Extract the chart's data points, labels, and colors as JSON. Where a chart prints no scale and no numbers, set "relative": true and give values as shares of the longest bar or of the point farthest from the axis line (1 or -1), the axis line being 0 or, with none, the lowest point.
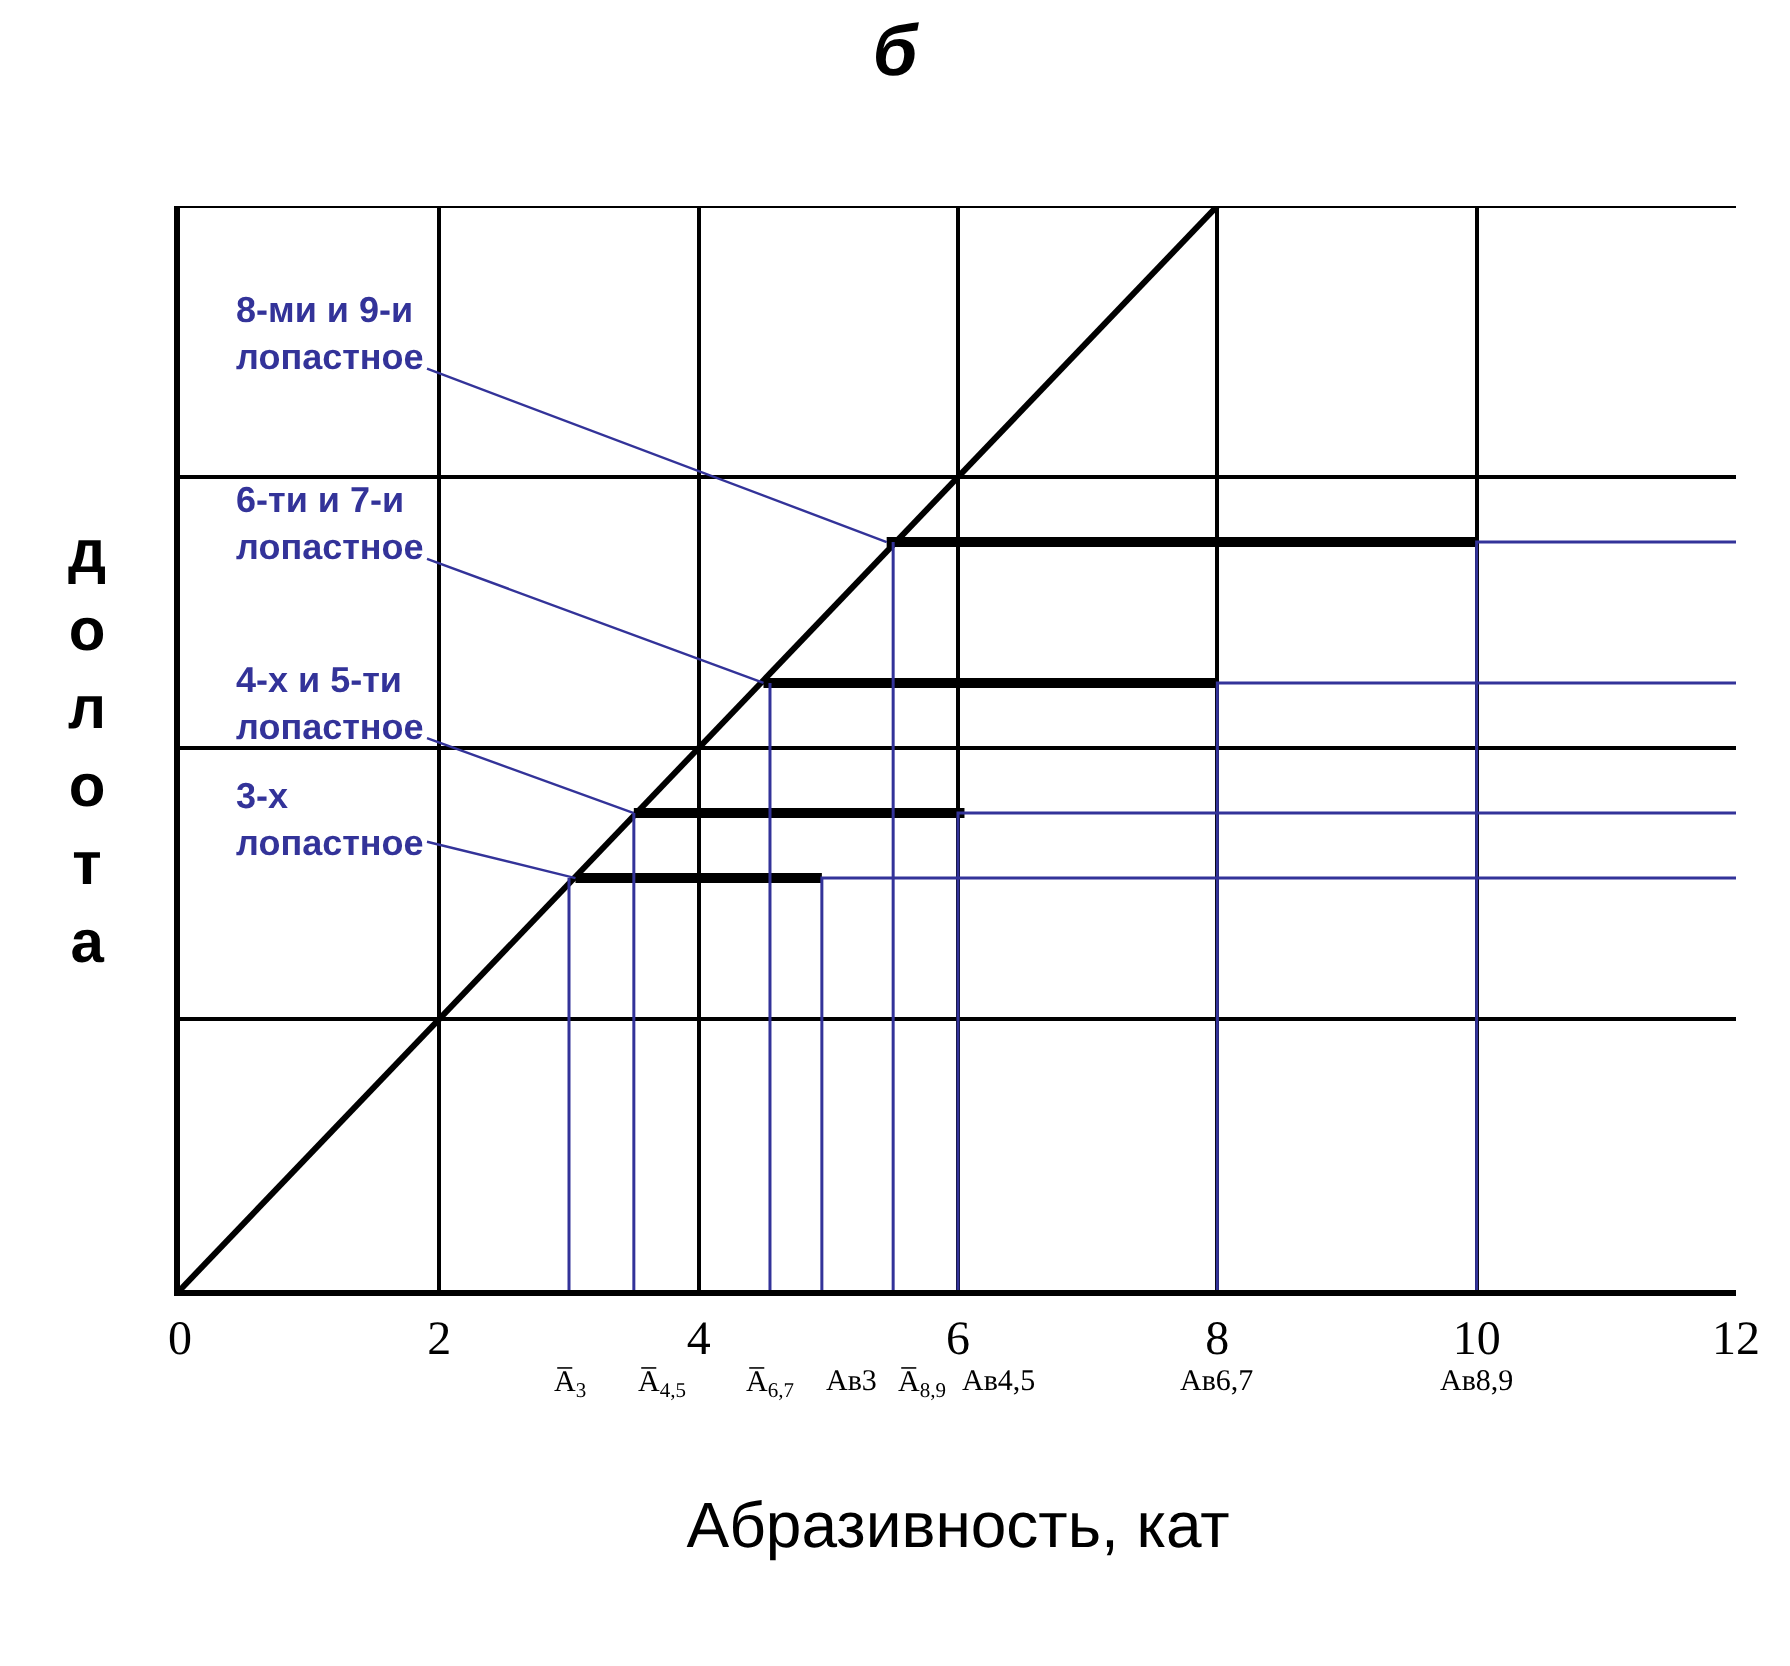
{
  "chart_data": {
    "type": "line",
    "title": "б",
    "xlabel": "Абразивность, кат",
    "ylabel": "долота",
    "relative": true,
    "xlim": [
      0,
      12
    ],
    "xticks": [
      0,
      2,
      4,
      6,
      8,
      10,
      12
    ],
    "grid": "x",
    "marker": "none",
    "line_style": "solid",
    "series": [
      {
        "x": [
          0,
          8
        ],
        "values": [
          0,
          1
        ],
        "color": "#000000"
      },
      {
        "x": [
          3.05,
          4.95
        ],
        "values": [
          0.38,
          0.38
        ],
        "color": "#000000"
      },
      {
        "x": [
          3.5,
          6.05
        ],
        "values": [
          0.44,
          0.44
        ],
        "color": "#000000"
      },
      {
        "x": [
          4.5,
          8
        ],
        "values": [
          0.56,
          0.56
        ],
        "color": "#000000"
      },
      {
        "x": [
          5.45,
          10
        ],
        "values": [
          0.69,
          0.69
        ],
        "color": "#000000"
      },
      {
        "x": [
          3.0,
          3.0,
          null,
          4.95,
          4.95,
          12
        ],
        "values": [
          0,
          0.38,
          null,
          0,
          0.38,
          0.38
        ],
        "color": "#333399"
      },
      {
        "x": [
          3.5,
          3.5,
          null,
          6,
          6,
          12
        ],
        "values": [
          0,
          0.44,
          null,
          0,
          0.44,
          0.44
        ],
        "color": "#333399"
      },
      {
        "x": [
          4.55,
          4.55,
          null,
          8,
          8,
          12
        ],
        "values": [
          0,
          0.56,
          null,
          0,
          0.56,
          0.56
        ],
        "color": "#333399"
      },
      {
        "x": [
          5.5,
          5.5,
          null,
          10,
          10,
          12
        ],
        "values": [
          0,
          0.69,
          null,
          0,
          0.69,
          0.69
        ],
        "color": "#333399"
      }
    ],
    "ref_lines": [
      {
        "axis": "y",
        "value": 0.25,
        "color": "#000000"
      },
      {
        "axis": "y",
        "value": 0.5,
        "color": "#000000"
      },
      {
        "axis": "y",
        "value": 0.75,
        "color": "#000000"
      },
      {
        "axis": "y",
        "value": 1,
        "color": "#000000"
      }
    ],
    "annotations": [
      {
        "text": "8-ми и 9-и\nлопастное",
        "x": 5.45,
        "y": 0.69
      },
      {
        "text": "6-ти и 7-и\nлопастное",
        "x": 4.5,
        "y": 0.56
      },
      {
        "text": "4-х и 5-ти\nлопастное",
        "x": 3.5,
        "y": 0.44
      },
      {
        "text": "3-х\nлопастное",
        "x": 3.05,
        "y": 0.38
      },
      {
        "text": "A̅$_{3}$",
        "x": 3.0,
        "y": 0
      },
      {
        "text": "A̅$_{4,5}$",
        "x": 3.5,
        "y": 0
      },
      {
        "text": "A̅$_{6,7}$",
        "x": 4.55,
        "y": 0
      },
      {
        "text": "Ав3",
        "x": 4.95,
        "y": 0
      },
      {
        "text": "A̅$_{8,9}$",
        "x": 5.5,
        "y": 0
      },
      {
        "text": "Ав4,5",
        "x": 6,
        "y": 0
      },
      {
        "text": "Ав6,7",
        "x": 8,
        "y": 0
      },
      {
        "text": "Ав8,9",
        "x": 10,
        "y": 0
      }
    ]
  }
}
